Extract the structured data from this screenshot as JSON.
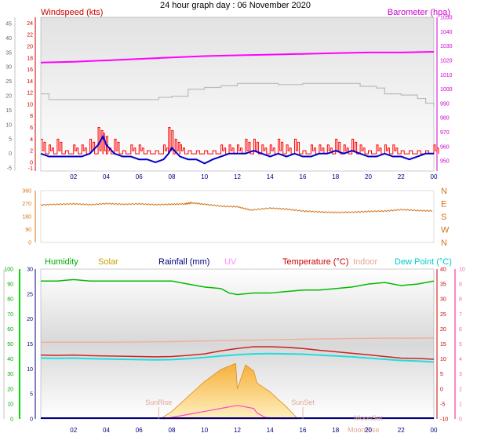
{
  "chart_data": [
    {
      "type": "line",
      "title": "24 hour graph day : 06 November 2020",
      "ylabel_left": "Windspeed (kts)",
      "ylabel_right": "Barometer (hpa)",
      "xticks": [
        "02",
        "04",
        "06",
        "08",
        "10",
        "12",
        "14",
        "16",
        "18",
        "20",
        "22",
        "00"
      ],
      "xlim": [
        0,
        24
      ],
      "yticks_left_outer": [
        "-5",
        "0",
        "5",
        "10",
        "15",
        "20",
        "25",
        "30",
        "35",
        "40",
        "45"
      ],
      "yticks_left_inner": [
        "-1",
        "0",
        "2",
        "4",
        "6",
        "8",
        "10",
        "12",
        "14",
        "16",
        "18",
        "20",
        "22",
        "24"
      ],
      "ylim_inner": [
        -1.5,
        25
      ],
      "yticks_right": [
        "950",
        "960",
        "970",
        "980",
        "990",
        "1000",
        "1010",
        "1020",
        "1030",
        "1040",
        "1050"
      ],
      "ylim_right": [
        943,
        1050
      ],
      "colors": {
        "gust": "#ff0000",
        "wind": "#0000cc",
        "barometer": "#ff00ff",
        "grey": "#bbbbbb"
      },
      "series": [
        {
          "name": "Barometer",
          "axis": "right",
          "x": [
            0,
            2,
            4,
            6,
            8,
            10,
            12,
            14,
            16,
            18,
            20,
            22,
            24
          ],
          "values": [
            1018.5,
            1019,
            1020,
            1021,
            1022,
            1023,
            1023.5,
            1024,
            1024.5,
            1025,
            1025.5,
            1025.5,
            1026
          ]
        },
        {
          "name": "",
          "axis": "left",
          "x": [
            0,
            0.3,
            0.5,
            2,
            3.5,
            4.5,
            6.5,
            7.2,
            8,
            9,
            10,
            11,
            12,
            14.5,
            16,
            18,
            19.5,
            20.5,
            21,
            22,
            23,
            23.5,
            24
          ],
          "values": [
            11.8,
            11.8,
            10.8,
            10.8,
            10.8,
            10.8,
            10.8,
            11.2,
            11.4,
            12.6,
            12.9,
            13.2,
            13.6,
            13.4,
            13.6,
            13.6,
            13.1,
            12.8,
            11.8,
            11.6,
            11.0,
            10.2,
            9.7
          ]
        },
        {
          "name": "",
          "axis": "left",
          "x": [
            0,
            0.5,
            1,
            1.5,
            2,
            2.5,
            3,
            3.5,
            3.8,
            4,
            4.5,
            5,
            5.5,
            6,
            6.5,
            7,
            7.5,
            7.8,
            8.2,
            8.5,
            9,
            9.5,
            10,
            10.5,
            11,
            11.5,
            12,
            12.5,
            13,
            13.5,
            14,
            14.5,
            15,
            15.5,
            16,
            16.5,
            17,
            17.5,
            18,
            18.5,
            19,
            19.5,
            20,
            20.5,
            21,
            21.5,
            22,
            22.5,
            23,
            23.5,
            24
          ],
          "values": [
            4,
            3,
            4,
            2,
            3,
            3,
            4,
            6,
            5,
            3,
            4,
            2,
            3,
            3,
            2,
            2,
            3,
            6,
            4,
            3,
            2,
            2,
            2,
            2,
            3,
            3,
            3,
            4,
            4,
            3,
            3,
            4,
            3,
            4,
            2,
            3,
            3,
            3,
            4,
            3,
            4,
            3,
            2,
            3,
            3,
            3,
            2,
            2,
            2,
            2,
            3
          ]
        },
        {
          "name": "",
          "axis": "left",
          "x": [
            0,
            0.5,
            1,
            1.5,
            2,
            2.5,
            3,
            3.5,
            3.8,
            4,
            4.5,
            5,
            5.5,
            6,
            6.5,
            7,
            7.5,
            7.8,
            8,
            8.5,
            9,
            9.5,
            10,
            10.5,
            11,
            11.5,
            12,
            12.5,
            13,
            13.5,
            14,
            14.5,
            15,
            15.5,
            16,
            16.5,
            17,
            17.5,
            18,
            18.5,
            19,
            19.5,
            20,
            20.5,
            21,
            21.5,
            22,
            22.5,
            23,
            23.5,
            24
          ],
          "values": [
            1.5,
            1,
            1,
            1,
            1,
            1,
            1.5,
            3,
            4.5,
            3,
            1.5,
            1,
            1,
            0.5,
            0.5,
            0,
            0.5,
            1.5,
            2.5,
            1,
            0.5,
            0.5,
            -0.2,
            0.5,
            1,
            1.5,
            1.5,
            1.5,
            2,
            1.5,
            1,
            1.5,
            1,
            1.5,
            1,
            1,
            1.5,
            1.5,
            2,
            1.5,
            2,
            1.5,
            1,
            1,
            1.5,
            1,
            1,
            0.5,
            1,
            1.5,
            1.5
          ]
        }
      ]
    },
    {
      "type": "scatter",
      "title": "",
      "ylabel_left": "",
      "yticks_left": [
        "0",
        "90",
        "180",
        "270",
        "360"
      ],
      "ylim": [
        0,
        360
      ],
      "direction_labels_right": [
        "N",
        "W",
        "S",
        "E",
        "N"
      ],
      "xlim": [
        0,
        24
      ],
      "colors": {
        "direction": "#d4741a"
      },
      "series": [
        {
          "name": "",
          "x": [
            0,
            1,
            2,
            3,
            4,
            5,
            6,
            7,
            8,
            8.8,
            9.2,
            10,
            11,
            12,
            12.8,
            14,
            15,
            16,
            17,
            18,
            19,
            20,
            21,
            22,
            23,
            24
          ],
          "values": [
            260,
            265,
            268,
            262,
            270,
            265,
            268,
            262,
            265,
            268,
            275,
            265,
            252,
            248,
            225,
            238,
            232,
            218,
            212,
            208,
            210,
            215,
            218,
            228,
            222,
            218
          ]
        }
      ]
    },
    {
      "type": "line",
      "title": "",
      "legend": [
        "Humidity",
        "Solar",
        "Rainfall (mm)",
        "UV",
        "Temperature (°C)",
        "Indoor",
        "Dew Point (°C)"
      ],
      "legend_colors": [
        "#00aa00",
        "#c8a200",
        "#000080",
        "#ff88ff",
        "#cc0000",
        "#e0a898",
        "#00cccc"
      ],
      "xticks": [
        "02",
        "04",
        "06",
        "08",
        "10",
        "12",
        "14",
        "16",
        "18",
        "20",
        "22",
        "00"
      ],
      "xlim": [
        0,
        24
      ],
      "yticks_humidity": [
        "0",
        "10",
        "20",
        "30",
        "40",
        "50",
        "60",
        "70",
        "80",
        "90",
        "100"
      ],
      "yticks_rain": [
        "0",
        "5",
        "10",
        "15",
        "20",
        "25",
        "30"
      ],
      "ylim_rain": [
        0,
        30
      ],
      "yticks_temp": [
        "-10",
        "-5",
        "0",
        "5",
        "10",
        "15",
        "20",
        "25",
        "30",
        "35",
        "40"
      ],
      "ylim_temp": [
        -10,
        40
      ],
      "yticks_uv": [
        "0",
        "1",
        "2",
        "3",
        "4",
        "5",
        "6",
        "7",
        "8",
        "9",
        "10"
      ],
      "annotations": [
        "SunRise",
        "SunSet",
        "MoonRise",
        "MoonSet"
      ],
      "series": [
        {
          "name": "Humidity",
          "x": [
            0,
            1,
            2,
            3,
            4,
            5,
            6,
            7,
            8,
            9,
            10,
            11,
            11.5,
            12,
            13,
            14,
            15,
            16,
            17,
            18,
            19,
            20,
            21,
            22,
            23,
            24
          ],
          "values": [
            92,
            92,
            93,
            92,
            92,
            92,
            92,
            92,
            92,
            90,
            88,
            87,
            84,
            83,
            84,
            84,
            85,
            86,
            86,
            87,
            88,
            90,
            91,
            89,
            90,
            92
          ]
        },
        {
          "name": "Indoor",
          "x": [
            0,
            4,
            8,
            12,
            16,
            20,
            24
          ],
          "values": [
            15.6,
            15.6,
            15.8,
            16.2,
            16.6,
            16.9,
            17.0
          ]
        },
        {
          "name": "Temperature (°C)",
          "x": [
            0,
            1,
            2,
            3,
            4,
            5,
            6,
            7,
            8,
            9,
            10,
            11,
            12,
            13,
            14,
            15,
            16,
            17,
            18,
            19,
            20,
            21,
            22,
            23,
            24
          ],
          "values": [
            11.3,
            11.2,
            11.3,
            11.1,
            11.0,
            10.9,
            10.8,
            10.7,
            10.8,
            11.2,
            11.7,
            12.7,
            13.5,
            14.1,
            14.1,
            13.9,
            13.5,
            12.9,
            12.4,
            11.9,
            11.4,
            10.8,
            10.3,
            10.2,
            9.9
          ]
        },
        {
          "name": "Dew Point (°C)",
          "x": [
            0,
            1,
            2,
            3,
            4,
            5,
            6,
            7,
            8,
            9,
            10,
            11,
            12,
            13,
            14,
            15,
            16,
            17,
            18,
            19,
            20,
            21,
            22,
            23,
            24
          ],
          "values": [
            10.3,
            10.2,
            10.3,
            10.1,
            10.0,
            9.9,
            9.8,
            9.7,
            9.8,
            10.1,
            10.5,
            11.0,
            11.4,
            11.7,
            11.8,
            11.7,
            11.6,
            11.3,
            11.0,
            10.7,
            10.3,
            9.9,
            9.5,
            9.3,
            9.0
          ]
        },
        {
          "name": "Solar",
          "x": [
            7.3,
            8,
            9,
            10,
            11,
            11.9,
            12,
            12.5,
            13,
            13.2,
            14,
            15,
            15.7
          ],
          "values": [
            0,
            0.5,
            1.5,
            2.5,
            3.3,
            3.7,
            2.0,
            3.6,
            3.2,
            2.4,
            1.8,
            0.8,
            0
          ]
        },
        {
          "name": "UV",
          "x": [
            7.5,
            9,
            10,
            11,
            12,
            13,
            13.2,
            13.7,
            15
          ],
          "values": [
            0,
            0.3,
            0.5,
            0.7,
            0.9,
            0.7,
            0.4,
            0.1,
            0
          ]
        }
      ]
    }
  ]
}
